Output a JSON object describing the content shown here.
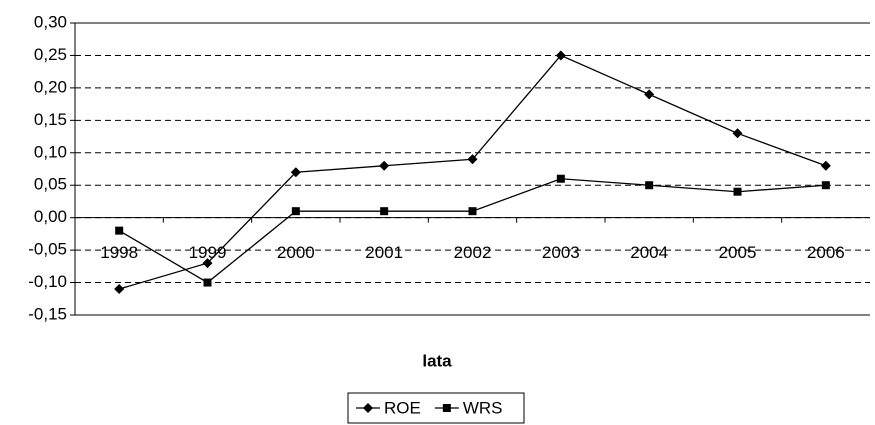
{
  "chart_data": {
    "type": "line",
    "x_label": "lata",
    "categories": [
      "1998",
      "1999",
      "2000",
      "2001",
      "2002",
      "2003",
      "2004",
      "2005",
      "2006"
    ],
    "series": [
      {
        "name": "ROE",
        "color": "#000000",
        "marker": "diamond",
        "values": [
          -0.11,
          -0.07,
          0.07,
          0.08,
          0.09,
          0.25,
          0.19,
          0.13,
          0.08
        ]
      },
      {
        "name": "WRS",
        "color": "#000000",
        "marker": "square",
        "values": [
          -0.02,
          -0.1,
          0.01,
          0.01,
          0.01,
          0.06,
          0.05,
          0.04,
          0.05
        ]
      }
    ],
    "ylim": [
      -0.15,
      0.3
    ],
    "yticks": [
      {
        "value": -0.15,
        "label": "-0,15"
      },
      {
        "value": -0.1,
        "label": "-0,10"
      },
      {
        "value": -0.05,
        "label": "-0,05"
      },
      {
        "value": 0,
        "label": "0,00"
      },
      {
        "value": 0.05,
        "label": "0,05"
      },
      {
        "value": 0.1,
        "label": "0,10"
      },
      {
        "value": 0.15,
        "label": "0,15"
      },
      {
        "value": 0.2,
        "label": "0,20"
      },
      {
        "value": 0.25,
        "label": "0,25"
      },
      {
        "value": 0.3,
        "label": "0,30"
      }
    ],
    "grid": true,
    "legend": "bottom"
  }
}
